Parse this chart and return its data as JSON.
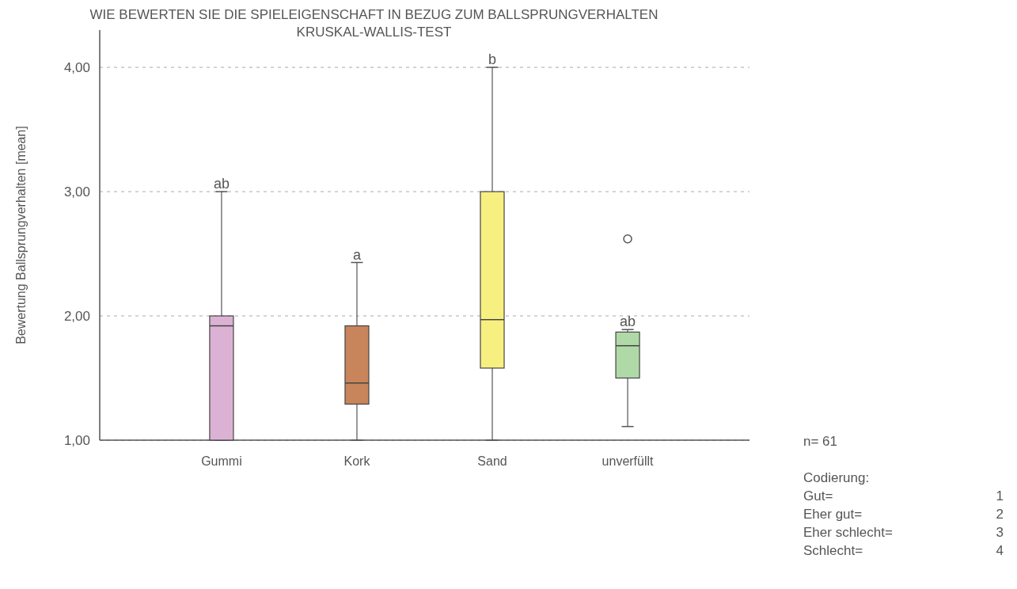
{
  "chart_data": {
    "type": "box",
    "title": "WIE BEWERTEN SIE DIE SPIELEIGENSCHAFT IN BEZUG ZUM BALLSPRUNGVERHALTEN",
    "subtitle": "KRUSKAL-WALLIS-TEST",
    "ylabel": "Bewertung Ballsprungverhalten [mean]",
    "categories": [
      "Gummi",
      "Kork",
      "Sand",
      "unverfüllt"
    ],
    "colors": [
      "#dcb2d4",
      "#c8855c",
      "#f7f081",
      "#b0d9a8"
    ],
    "boxes": [
      {
        "low": 1,
        "q1": 1,
        "median": 1.92,
        "q3": 2.0,
        "high": 3.0
      },
      {
        "low": 1,
        "q1": 1.29,
        "median": 1.46,
        "q3": 1.92,
        "high": 2.43
      },
      {
        "low": 1,
        "q1": 1.58,
        "median": 1.97,
        "q3": 3.0,
        "high": 4.0
      },
      {
        "low": 1.11,
        "q1": 1.5,
        "median": 1.76,
        "q3": 1.87,
        "high": 1.89,
        "outliers": [
          2.62
        ]
      }
    ],
    "ylim": [
      1,
      4.3
    ],
    "yticks": [
      {
        "value": 1,
        "label": "1,00"
      },
      {
        "value": 2,
        "label": "2,00"
      },
      {
        "value": 3,
        "label": "3,00"
      },
      {
        "value": 4,
        "label": "4,00"
      }
    ],
    "grid": "y",
    "annotations": [
      {
        "text": "ab",
        "x": "Gummi",
        "y": 3.0
      },
      {
        "text": "a",
        "x": "Kork",
        "y": 2.43
      },
      {
        "text": "b",
        "x": "Sand",
        "y": 4.0
      },
      {
        "text": "ab",
        "x": "unverfüllt",
        "y": 1.89
      },
      "n= 61",
      "Codierung:",
      "Gut=\t1",
      "Eher gut=\t2",
      "Eher schlecht=\t3",
      "Schlecht=\t4"
    ]
  }
}
